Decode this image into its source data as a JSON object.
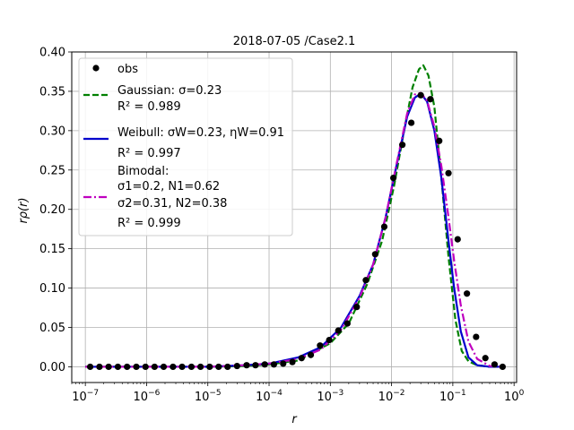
{
  "chart_data": {
    "type": "scatter",
    "title": "2018-07-05 /Case2.1",
    "xlabel": "r",
    "ylabel": "rρ(r)",
    "xscale": "log",
    "xlim": [
      6e-08,
      1.1
    ],
    "ylim": [
      -0.02,
      0.4
    ],
    "grid": true,
    "legend_position": "upper-left",
    "x_ticks": [
      {
        "value": 1e-07,
        "base": "10",
        "exp": "−7"
      },
      {
        "value": 1e-06,
        "base": "10",
        "exp": "−6"
      },
      {
        "value": 1e-05,
        "base": "10",
        "exp": "−5"
      },
      {
        "value": 0.0001,
        "base": "10",
        "exp": "−4"
      },
      {
        "value": 0.001,
        "base": "10",
        "exp": "−3"
      },
      {
        "value": 0.01,
        "base": "10",
        "exp": "−2"
      },
      {
        "value": 0.1,
        "base": "10",
        "exp": "−1"
      },
      {
        "value": 1,
        "base": "10",
        "exp": "0"
      }
    ],
    "y_ticks": [
      {
        "value": 0.0,
        "label": "0.00"
      },
      {
        "value": 0.05,
        "label": "0.05"
      },
      {
        "value": 0.1,
        "label": "0.10"
      },
      {
        "value": 0.15,
        "label": "0.15"
      },
      {
        "value": 0.2,
        "label": "0.20"
      },
      {
        "value": 0.25,
        "label": "0.25"
      },
      {
        "value": 0.3,
        "label": "0.30"
      },
      {
        "value": 0.35,
        "label": "0.35"
      },
      {
        "value": 0.4,
        "label": "0.40"
      }
    ],
    "observations": {
      "name": "obs",
      "color": "#000000",
      "points": [
        {
          "x": 1.2e-07,
          "y": 0.0
        },
        {
          "x": 1.7e-07,
          "y": 0.0
        },
        {
          "x": 2.4e-07,
          "y": 0.0
        },
        {
          "x": 3.4e-07,
          "y": 0.0
        },
        {
          "x": 4.8e-07,
          "y": 0.0
        },
        {
          "x": 6.8e-07,
          "y": 0.0
        },
        {
          "x": 9.6e-07,
          "y": 0.0
        },
        {
          "x": 1.35e-06,
          "y": 0.0
        },
        {
          "x": 1.9e-06,
          "y": 0.0
        },
        {
          "x": 2.7e-06,
          "y": 0.0
        },
        {
          "x": 3.8e-06,
          "y": 0.0
        },
        {
          "x": 5.4e-06,
          "y": 0.0
        },
        {
          "x": 7.6e-06,
          "y": 0.0
        },
        {
          "x": 1.07e-05,
          "y": 0.0
        },
        {
          "x": 1.5e-05,
          "y": 0.0
        },
        {
          "x": 2.1e-05,
          "y": 0.0
        },
        {
          "x": 3e-05,
          "y": 0.001
        },
        {
          "x": 4.3e-05,
          "y": 0.002
        },
        {
          "x": 6e-05,
          "y": 0.002
        },
        {
          "x": 8.5e-05,
          "y": 0.003
        },
        {
          "x": 0.00012,
          "y": 0.003
        },
        {
          "x": 0.00017,
          "y": 0.004
        },
        {
          "x": 0.00024,
          "y": 0.006
        },
        {
          "x": 0.00034,
          "y": 0.011
        },
        {
          "x": 0.00048,
          "y": 0.015
        },
        {
          "x": 0.00068,
          "y": 0.027
        },
        {
          "x": 0.00096,
          "y": 0.034
        },
        {
          "x": 0.00135,
          "y": 0.046
        },
        {
          "x": 0.0019,
          "y": 0.055
        },
        {
          "x": 0.0027,
          "y": 0.076
        },
        {
          "x": 0.0038,
          "y": 0.11
        },
        {
          "x": 0.0054,
          "y": 0.143
        },
        {
          "x": 0.0076,
          "y": 0.178
        },
        {
          "x": 0.0107,
          "y": 0.24
        },
        {
          "x": 0.015,
          "y": 0.282
        },
        {
          "x": 0.021,
          "y": 0.31
        },
        {
          "x": 0.03,
          "y": 0.345
        },
        {
          "x": 0.043,
          "y": 0.34
        },
        {
          "x": 0.06,
          "y": 0.287
        },
        {
          "x": 0.085,
          "y": 0.246
        },
        {
          "x": 0.12,
          "y": 0.162
        },
        {
          "x": 0.17,
          "y": 0.093
        },
        {
          "x": 0.24,
          "y": 0.038
        },
        {
          "x": 0.34,
          "y": 0.011
        },
        {
          "x": 0.48,
          "y": 0.003
        },
        {
          "x": 0.65,
          "y": 0.0
        }
      ]
    },
    "fits": [
      {
        "name": "Gaussian",
        "color": "#008000",
        "dash": "dashed",
        "legend_lines": [
          "Gaussian: σ=0.23",
          "R² = 0.989"
        ],
        "points": [
          {
            "x": 1e-07,
            "y": 0.0
          },
          {
            "x": 1e-05,
            "y": 0.0
          },
          {
            "x": 4e-05,
            "y": 0.001
          },
          {
            "x": 0.0001,
            "y": 0.003
          },
          {
            "x": 0.0003,
            "y": 0.008
          },
          {
            "x": 0.001,
            "y": 0.03
          },
          {
            "x": 0.002,
            "y": 0.055
          },
          {
            "x": 0.004,
            "y": 0.105
          },
          {
            "x": 0.007,
            "y": 0.16
          },
          {
            "x": 0.011,
            "y": 0.23
          },
          {
            "x": 0.016,
            "y": 0.3
          },
          {
            "x": 0.022,
            "y": 0.355
          },
          {
            "x": 0.028,
            "y": 0.378
          },
          {
            "x": 0.033,
            "y": 0.383
          },
          {
            "x": 0.04,
            "y": 0.37
          },
          {
            "x": 0.05,
            "y": 0.33
          },
          {
            "x": 0.065,
            "y": 0.24
          },
          {
            "x": 0.085,
            "y": 0.14
          },
          {
            "x": 0.11,
            "y": 0.06
          },
          {
            "x": 0.14,
            "y": 0.02
          },
          {
            "x": 0.18,
            "y": 0.007
          },
          {
            "x": 0.25,
            "y": 0.002
          },
          {
            "x": 0.4,
            "y": 0.0
          },
          {
            "x": 0.65,
            "y": 0.0
          }
        ]
      },
      {
        "name": "Weibull",
        "color": "#0000cc",
        "dash": "solid",
        "legend_lines": [
          "Weibull: σW=0.23, ηW=0.91",
          "R² = 0.997"
        ],
        "points": [
          {
            "x": 1e-07,
            "y": 0.0
          },
          {
            "x": 1e-05,
            "y": 0.0
          },
          {
            "x": 4e-05,
            "y": 0.002
          },
          {
            "x": 0.0001,
            "y": 0.004
          },
          {
            "x": 0.0003,
            "y": 0.012
          },
          {
            "x": 0.0007,
            "y": 0.025
          },
          {
            "x": 0.0015,
            "y": 0.05
          },
          {
            "x": 0.003,
            "y": 0.09
          },
          {
            "x": 0.005,
            "y": 0.13
          },
          {
            "x": 0.008,
            "y": 0.19
          },
          {
            "x": 0.012,
            "y": 0.255
          },
          {
            "x": 0.018,
            "y": 0.318
          },
          {
            "x": 0.024,
            "y": 0.342
          },
          {
            "x": 0.03,
            "y": 0.347
          },
          {
            "x": 0.038,
            "y": 0.337
          },
          {
            "x": 0.05,
            "y": 0.3
          },
          {
            "x": 0.065,
            "y": 0.24
          },
          {
            "x": 0.085,
            "y": 0.16
          },
          {
            "x": 0.105,
            "y": 0.1
          },
          {
            "x": 0.135,
            "y": 0.045
          },
          {
            "x": 0.18,
            "y": 0.012
          },
          {
            "x": 0.25,
            "y": 0.002
          },
          {
            "x": 0.4,
            "y": 0.0
          },
          {
            "x": 0.65,
            "y": 0.0
          }
        ]
      },
      {
        "name": "Bimodal",
        "color": "#bf00bf",
        "dash": "dashdot",
        "legend_lines": [
          "Bimodal:",
          "σ1=0.2, N1=0.62",
          "σ2=0.31, N2=0.38",
          "R² = 0.999"
        ],
        "points": [
          {
            "x": 1e-07,
            "y": 0.0
          },
          {
            "x": 1e-05,
            "y": 0.0
          },
          {
            "x": 4e-05,
            "y": 0.002
          },
          {
            "x": 0.0001,
            "y": 0.004
          },
          {
            "x": 0.0003,
            "y": 0.01
          },
          {
            "x": 0.0007,
            "y": 0.022
          },
          {
            "x": 0.0015,
            "y": 0.047
          },
          {
            "x": 0.003,
            "y": 0.088
          },
          {
            "x": 0.005,
            "y": 0.13
          },
          {
            "x": 0.008,
            "y": 0.19
          },
          {
            "x": 0.012,
            "y": 0.257
          },
          {
            "x": 0.018,
            "y": 0.322
          },
          {
            "x": 0.024,
            "y": 0.346
          },
          {
            "x": 0.03,
            "y": 0.348
          },
          {
            "x": 0.038,
            "y": 0.338
          },
          {
            "x": 0.05,
            "y": 0.305
          },
          {
            "x": 0.065,
            "y": 0.255
          },
          {
            "x": 0.085,
            "y": 0.19
          },
          {
            "x": 0.105,
            "y": 0.135
          },
          {
            "x": 0.135,
            "y": 0.078
          },
          {
            "x": 0.18,
            "y": 0.032
          },
          {
            "x": 0.25,
            "y": 0.01
          },
          {
            "x": 0.4,
            "y": 0.001
          },
          {
            "x": 0.65,
            "y": 0.0
          }
        ]
      }
    ]
  }
}
